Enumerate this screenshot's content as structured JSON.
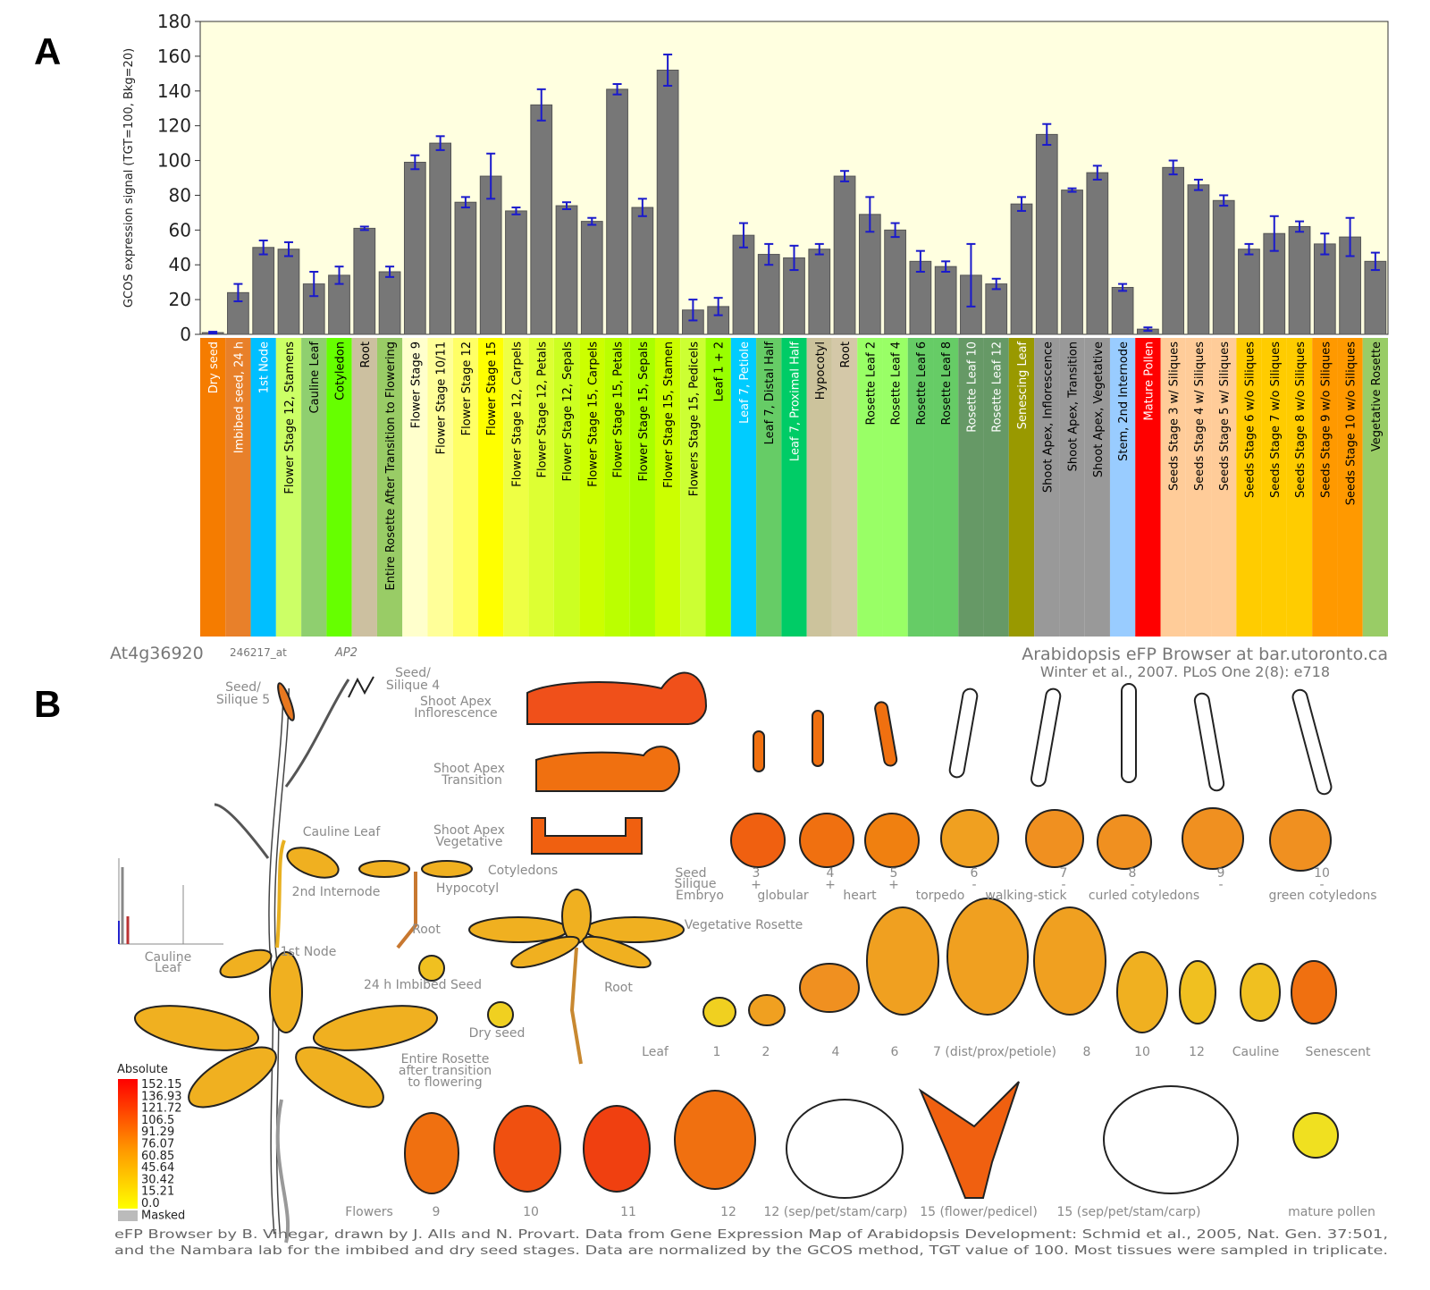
{
  "panel_labels": [
    "A",
    "B"
  ],
  "chart_data": {
    "type": "bar",
    "y_label": "GCOS expression signal (TGT=100, Bkg=20)",
    "categories": [
      "Dry seed",
      "Imbibed seed, 24 h",
      "1st Node",
      "Flower Stage 12, Stamens",
      "Cauline Leaf",
      "Cotyledon",
      "Root",
      "Entire Rosette After Transition to Flowering",
      "Flower Stage 9",
      "Flower Stage 10/11",
      "Flower Stage 12",
      "Flower Stage 15",
      "Flower Stage 12, Carpels",
      "Flower Stage 12, Petals",
      "Flower Stage 12, Sepals",
      "Flower Stage 15, Carpels",
      "Flower Stage 15, Petals",
      "Flower Stage 15, Sepals",
      "Flower Stage 15, Stamen",
      "Flowers Stage 15, Pedicels",
      "Leaf 1 + 2",
      "Leaf 7, Petiole",
      "Leaf 7, Distal Half",
      "Leaf 7, Proximal Half",
      "Hypocotyl",
      "Root",
      "Rosette Leaf 2",
      "Rosette Leaf 4",
      "Rosette Leaf 6",
      "Rosette Leaf 8",
      "Rosette Leaf 10",
      "Rosette Leaf 12",
      "Senescing Leaf",
      "Shoot Apex, Inflorescence",
      "Shoot Apex, Transition",
      "Shoot Apex, Vegetative",
      "Stem, 2nd Internode",
      "Mature Pollen",
      "Seeds Stage 3 w/ Siliques",
      "Seeds Stage 4 w/ Siliques",
      "Seeds Stage 5 w/ Siliques",
      "Seeds Stage 6 w/o Siliques",
      "Seeds Stage 7 w/o Siliques",
      "Seeds Stage 8 w/o Siliques",
      "Seeds Stage 9 w/o Siliques",
      "Seeds Stage 10 w/o Siliques",
      "Vegetative Rosette"
    ],
    "values": [
      1,
      24,
      50,
      49,
      29,
      34,
      61,
      36,
      99,
      110,
      76,
      91,
      71,
      132,
      74,
      65,
      141,
      73,
      152,
      14,
      16,
      57,
      46,
      44,
      49,
      91,
      69,
      60,
      42,
      39,
      34,
      29,
      75,
      115,
      83,
      93,
      27,
      3,
      96,
      86,
      77,
      49,
      58,
      62,
      52,
      56,
      42
    ],
    "errors": [
      0.5,
      5,
      4,
      4,
      7,
      5,
      1,
      3,
      4,
      4,
      3,
      13,
      2,
      9,
      2,
      2,
      3,
      5,
      9,
      6,
      5,
      7,
      6,
      7,
      3,
      3,
      10,
      4,
      6,
      3,
      18,
      3,
      4,
      6,
      1,
      4,
      2,
      1,
      4,
      3,
      3,
      3,
      10,
      3,
      6,
      11,
      5
    ],
    "color": "#777777",
    "error_color": "#1a1acc",
    "background": "#ffffe0",
    "label_colors": [
      "#f57c00",
      "#e8802a",
      "#00bfff",
      "#ccff66",
      "#8fcf6f",
      "#66ff00",
      "#ccc0a0",
      "#99cc66",
      "#ffffcc",
      "#ffff99",
      "#ffff66",
      "#ffff00",
      "#eeff44",
      "#ddff33",
      "#ccff22",
      "#ccff00",
      "#bbff00",
      "#aaff00",
      "#ccff00",
      "#ccff33",
      "#99ff00",
      "#00ccff",
      "#66cc66",
      "#00cc66",
      "#ccc39c",
      "#d4c8a8",
      "#99ff66",
      "#99ff66",
      "#66cc66",
      "#66cc66",
      "#669966",
      "#669966",
      "#999900",
      "#999999",
      "#999999",
      "#999999",
      "#99ccff",
      "#ff0000",
      "#ffcc99",
      "#ffcc99",
      "#ffcc99",
      "#ffcc00",
      "#ffcc00",
      "#ffcc00",
      "#ff9900",
      "#ff9900",
      "#99cc66"
    ],
    "ylim": [
      0,
      180
    ],
    "yticks": [
      0,
      20,
      40,
      60,
      80,
      100,
      120,
      140,
      160,
      180
    ]
  },
  "chart_footer": {
    "gene": "At4g36920",
    "probe": "246217_at",
    "alias": "AP2",
    "source": "Arabidopsis eFP Browser at bar.utoronto.ca",
    "citation": "Winter et al., 2007. PLoS One 2(8): e718"
  },
  "panel_b": {
    "labels": [
      "Seed/",
      "Silique 5",
      "Seed/",
      "Silique 4",
      "Shoot Apex",
      "Inflorescence",
      "Shoot Apex",
      "Transition",
      "Shoot Apex",
      "Vegetative",
      "Cauline Leaf",
      "Cotyledons",
      "Hypocotyl",
      "2nd Internode",
      "Root",
      "Vegetative Rosette",
      "1st Node",
      "Cauline",
      "Leaf",
      "24 h Imbibed Seed",
      "Root",
      "Dry seed",
      "Entire Rosette",
      "after transition",
      "to flowering"
    ],
    "seed_row": {
      "headers": [
        "Seed",
        "Silique",
        "Embryo"
      ],
      "stages": [
        "3",
        "4",
        "5",
        "6",
        "7",
        "8",
        "9",
        "10"
      ],
      "silique": [
        "+",
        "+",
        "+",
        "-",
        "-",
        "-",
        "-",
        "-"
      ],
      "embryo": [
        "globular",
        "heart",
        "torpedo",
        "walking-stick",
        "curled cotyledons",
        "green cotyledons"
      ]
    },
    "leaf_row": [
      "Leaf",
      "1",
      "2",
      "4",
      "6",
      "7 (dist/prox/petiole)",
      "8",
      "10",
      "12",
      "Cauline",
      "Senescent"
    ],
    "flower_row": [
      "Flowers",
      "9",
      "10",
      "11",
      "12",
      "12 (sep/pet/stam/carp)",
      "15 (flower/pedicel)",
      "15 (sep/pet/stam/carp)",
      "mature pollen"
    ],
    "legend": {
      "title": "Absolute",
      "labels": [
        "152.15",
        "136.93",
        "121.72",
        "106.5",
        "91.29",
        "76.07",
        "60.85",
        "45.64",
        "30.42",
        "15.21",
        "0.0",
        "Masked"
      ]
    },
    "footer": [
      "eFP Browser by B. Vinegar, drawn by J. Alls and N. Provart. Data from Gene Expression Map of Arabidopsis Development: Schmid et al., 2005, Nat. Gen. 37:501,",
      "and the Nambara lab for the imbibed and dry seed stages. Data are normalized by the GCOS method, TGT value of 100. Most tissues were sampled in triplicate."
    ]
  }
}
